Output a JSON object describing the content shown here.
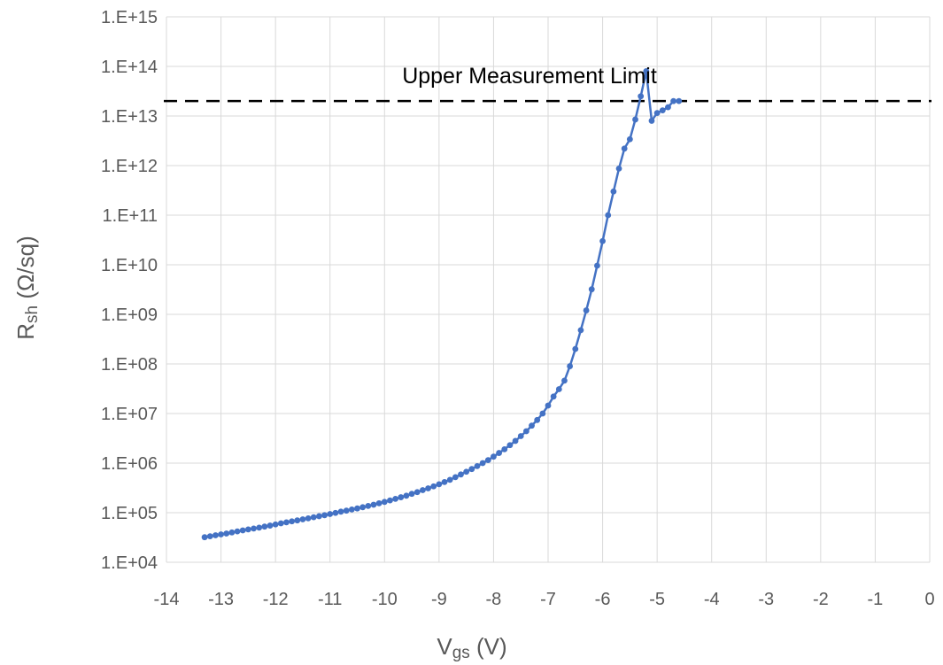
{
  "chart_data": {
    "type": "scatter",
    "xlabel": {
      "main": "V",
      "sub": "gs",
      "suffix": " (V)"
    },
    "ylabel": {
      "main": "R",
      "sub": "sh",
      "suffix": " (Ω/sq)"
    },
    "xlim": [
      -14,
      0
    ],
    "ylim_log10": [
      4,
      15
    ],
    "y_scale": "log",
    "grid": true,
    "x_ticks": [
      -14,
      -13,
      -12,
      -11,
      -10,
      -9,
      -8,
      -7,
      -6,
      -5,
      -4,
      -3,
      -2,
      -1,
      0
    ],
    "x_tick_labels": [
      "-14",
      "-13",
      "-12",
      "-11",
      "-10",
      "-9",
      "-8",
      "-7",
      "-6",
      "-5",
      "-4",
      "-3",
      "-2",
      "-1",
      "0"
    ],
    "y_tick_labels": [
      "1.E+04",
      "1.E+05",
      "1.E+06",
      "1.E+07",
      "1.E+08",
      "1.E+09",
      "1.E+10",
      "1.E+11",
      "1.E+12",
      "1.E+13",
      "1.E+14",
      "1.E+15"
    ],
    "reference_line": {
      "label": "Upper Measurement Limit",
      "y": 20000000000000.0,
      "style": "dashed",
      "color": "#000000"
    },
    "series": [
      {
        "color": "#4472c4",
        "x": [
          -13.3,
          -13.2,
          -13.1,
          -13.0,
          -12.9,
          -12.8,
          -12.7,
          -12.6,
          -12.5,
          -12.4,
          -12.3,
          -12.2,
          -12.1,
          -12.0,
          -11.9,
          -11.8,
          -11.7,
          -11.6,
          -11.5,
          -11.4,
          -11.3,
          -11.2,
          -11.1,
          -11.0,
          -10.9,
          -10.8,
          -10.7,
          -10.6,
          -10.5,
          -10.4,
          -10.3,
          -10.2,
          -10.1,
          -10.0,
          -9.9,
          -9.8,
          -9.7,
          -9.6,
          -9.5,
          -9.4,
          -9.3,
          -9.2,
          -9.1,
          -9.0,
          -8.9,
          -8.8,
          -8.7,
          -8.6,
          -8.5,
          -8.4,
          -8.3,
          -8.2,
          -8.1,
          -8.0,
          -7.9,
          -7.8,
          -7.7,
          -7.6,
          -7.5,
          -7.4,
          -7.3,
          -7.2,
          -7.1,
          -7.0,
          -6.9,
          -6.8,
          -6.7,
          -6.6,
          -6.5,
          -6.4,
          -6.3,
          -6.2,
          -6.1,
          -6.0,
          -5.9,
          -5.8,
          -5.7,
          -5.6,
          -5.5,
          -5.4,
          -5.3,
          -5.2,
          -5.1,
          -5.0,
          -4.9,
          -4.8,
          -4.7,
          -4.6
        ],
        "y": [
          32000.0,
          33500.0,
          35000.0,
          36500.0,
          38000.0,
          40000.0,
          42000.0,
          44000.0,
          46000.0,
          48000.0,
          50000.0,
          52500.0,
          55000.0,
          58000.0,
          61000.0,
          64000.0,
          67000.0,
          70000.0,
          73500.0,
          77000.0,
          81000.0,
          85000.0,
          89000.0,
          94000.0,
          99000.0,
          105000.0,
          110000.0,
          116000.0,
          122000.0,
          129000.0,
          137000.0,
          145000.0,
          155000.0,
          165000.0,
          177000.0,
          190000.0,
          205000.0,
          220000.0,
          240000.0,
          260000.0,
          285000.0,
          310000.0,
          340000.0,
          375000.0,
          415000.0,
          460000.0,
          520000.0,
          590000.0,
          670000.0,
          760000.0,
          870000.0,
          1000000.0,
          1150000.0,
          1350000.0,
          1600000.0,
          1900000.0,
          2300000.0,
          2800000.0,
          3500000.0,
          4400000.0,
          5700000.0,
          7400000.0,
          10000000.0,
          14500000.0,
          22000000.0,
          31000000.0,
          46000000.0,
          90000000.0,
          200000000.0,
          480000000.0,
          1200000000.0,
          3200000000.0,
          9600000000.0,
          30000000000.0,
          100000000000.0,
          300000000000.0,
          870000000000.0,
          2200000000000.0,
          3400000000000.0,
          8500000000000.0,
          25000000000000.0,
          80000000000000.0,
          8000000000000.0,
          11500000000000.0,
          13000000000000.0,
          15000000000000.0,
          20000000000000.0,
          20000000000000.0
        ]
      }
    ]
  }
}
